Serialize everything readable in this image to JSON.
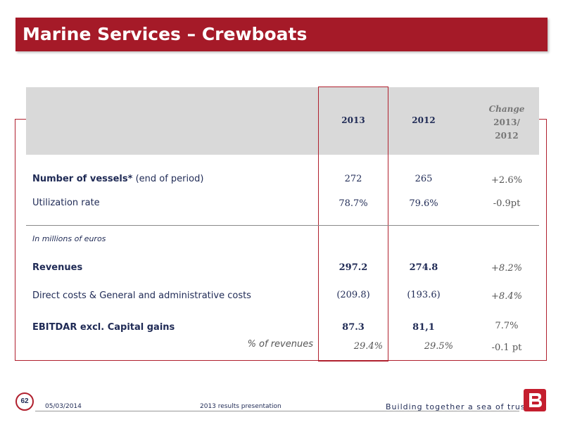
{
  "title": "Marine Services – Crewboats",
  "table": {
    "headers": {
      "col_2013": "2013",
      "col_2012": "2012",
      "change_line1": "Change",
      "change_line2": "2013/",
      "change_line3": "2012"
    },
    "rows": [
      {
        "label_bold": "Number of vessels*",
        "label_rest": " (end of period)",
        "v2013": "272",
        "v2012": "265",
        "change": "+2.6%"
      },
      {
        "label_bold": "",
        "label_rest": "Utilization rate",
        "v2013": "78.7%",
        "v2012": "79.6%",
        "change": "-0.9pt"
      }
    ],
    "note": "In millions of euros",
    "fin_rows": [
      {
        "label": "Revenues",
        "v2013": "297.2",
        "v2012": "274.8",
        "change": "+8.2%"
      },
      {
        "label": "Direct costs & General and administrative costs",
        "v2013": "(209.8)",
        "v2012": "(193.6)",
        "change": "+8.4%"
      },
      {
        "label": "EBITDAR excl. Capital gains",
        "v2013": "87.3",
        "v2012": "81,1",
        "change": "7.7%"
      }
    ],
    "pct_row": {
      "label": "% of revenues",
      "v2013": "29.4%",
      "v2012": "29.5%",
      "change": "-0.1 pt"
    }
  },
  "footer": {
    "page_number": "62",
    "date": "05/03/2014",
    "presentation": "2013 results presentation",
    "tagline": "Building together a sea of trust"
  },
  "colors": {
    "brand_red": "#a51a28",
    "navy": "#1f2a55",
    "header_gray": "#d9d9d9"
  }
}
